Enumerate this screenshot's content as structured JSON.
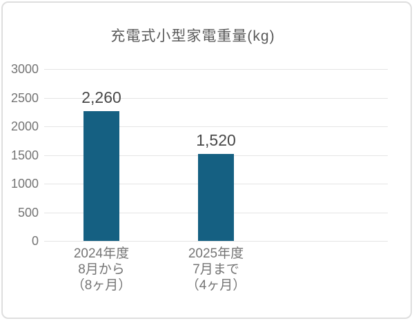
{
  "chart_data": {
    "type": "bar",
    "title": "充電式小型家電重量(kg)",
    "categories": [
      "2024年度\n8月から\n（8ヶ月）",
      "2025年度\n7月まで\n（4ヶ月）"
    ],
    "values": [
      2260,
      1520
    ],
    "value_labels": [
      "2,260",
      "1,520"
    ],
    "y_ticks": [
      0,
      500,
      1000,
      1500,
      2000,
      2500,
      3000
    ],
    "ylim": [
      0,
      3000
    ],
    "xlabel": "",
    "ylabel": "",
    "grid": true,
    "legend": "none",
    "category_slots": 3,
    "colors": {
      "bar": "#156082",
      "gridline": "#e4e4e4",
      "axis_text": "#747474",
      "value_label_text": "#474747",
      "title_text": "#595959",
      "card_border": "#dedede",
      "background": "#ffffff"
    }
  }
}
